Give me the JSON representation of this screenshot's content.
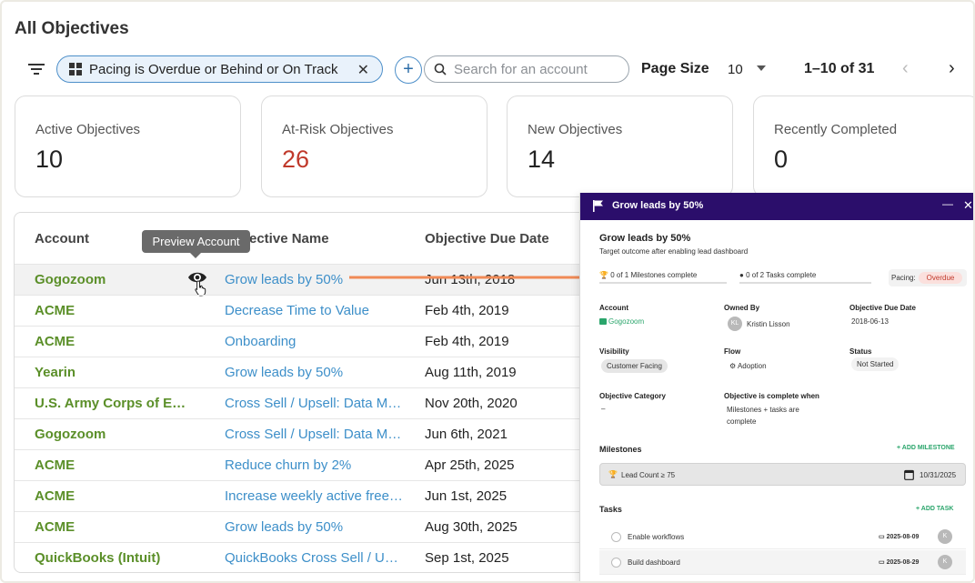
{
  "page": {
    "title": "All Objectives"
  },
  "toolbar": {
    "filter_chip": "Pacing is Overdue or Behind or On Track",
    "search_placeholder": "Search for an account",
    "page_size_label": "Page Size",
    "page_size_value": "10",
    "range": "1–10 of 31"
  },
  "cards": [
    {
      "label": "Active Objectives",
      "value": "10"
    },
    {
      "label": "At-Risk Objectives",
      "value": "26",
      "color": "#c0392b"
    },
    {
      "label": "New Objectives",
      "value": "14"
    },
    {
      "label": "Recently Completed",
      "value": "0"
    }
  ],
  "table": {
    "headers": [
      "Account",
      "Objective Name",
      "Objective Due Date"
    ],
    "header_obj_visible": "ective Name",
    "rows": [
      {
        "account": "Gogozoom",
        "objective": "Grow leads by 50%",
        "due": "Jun 13th, 2018"
      },
      {
        "account": "ACME",
        "objective": "Decrease Time to Value",
        "due": "Feb 4th, 2019"
      },
      {
        "account": "ACME",
        "objective": "Onboarding",
        "due": "Feb 4th, 2019"
      },
      {
        "account": "Yearin",
        "objective": "Grow leads by 50%",
        "due": "Aug 11th, 2019"
      },
      {
        "account": "U.S. Army Corps of Engineers",
        "objective": "Cross Sell / Upsell: Data Management",
        "due": "Nov 20th, 2020"
      },
      {
        "account": "Gogozoom",
        "objective": "Cross Sell / Upsell: Data Management",
        "due": "Jun 6th, 2021"
      },
      {
        "account": "ACME",
        "objective": "Reduce churn by 2%",
        "due": "Apr 25th, 2025"
      },
      {
        "account": "ACME",
        "objective": "Increase weekly active free users",
        "due": "Jun 1st, 2025"
      },
      {
        "account": "ACME",
        "objective": "Grow leads by 50%",
        "due": "Aug 30th, 2025"
      },
      {
        "account": "QuickBooks (Intuit)",
        "objective": "QuickBooks Cross Sell / Upsell",
        "due": "Sep 1st, 2025"
      }
    ]
  },
  "tooltip": "Preview Account",
  "panel": {
    "header_title": "Grow leads by 50%",
    "title": "Grow leads by 50%",
    "subtitle": "Target outcome after enabling lead dashboard",
    "milestones_progress": "0 of 1 Milestones complete",
    "tasks_progress": "0 of 2 Tasks complete",
    "pacing_label": "Pacing:",
    "pacing_value": "Overdue",
    "fields": {
      "account_label": "Account",
      "account_value": "Gogozoom",
      "owned_by_label": "Owned By",
      "owner_initials": "KL",
      "owner_name": "Kristin Lisson",
      "due_label": "Objective Due Date",
      "due_value": "2018-06-13",
      "visibility_label": "Visibility",
      "visibility_value": "Customer Facing",
      "flow_label": "Flow",
      "flow_value": "Adoption",
      "status_label": "Status",
      "status_value": "Not Started",
      "category_label": "Objective Category",
      "category_value": "–",
      "complete_when_label": "Objective is complete when",
      "complete_when_line1": "Milestones + tasks are",
      "complete_when_line2": "complete"
    },
    "milestones_heading": "Milestones",
    "add_milestone": "+ ADD MILESTONE",
    "milestone": {
      "name": "Lead Count ≥ 75",
      "date": "10/31/2025"
    },
    "tasks_heading": "Tasks",
    "add_task": "+ ADD TASK",
    "tasks": [
      {
        "name": "Enable workflows",
        "date": "2025-08-09",
        "initial": "K"
      },
      {
        "name": "Build dashboard",
        "date": "2025-08-29",
        "initial": "K"
      }
    ]
  }
}
